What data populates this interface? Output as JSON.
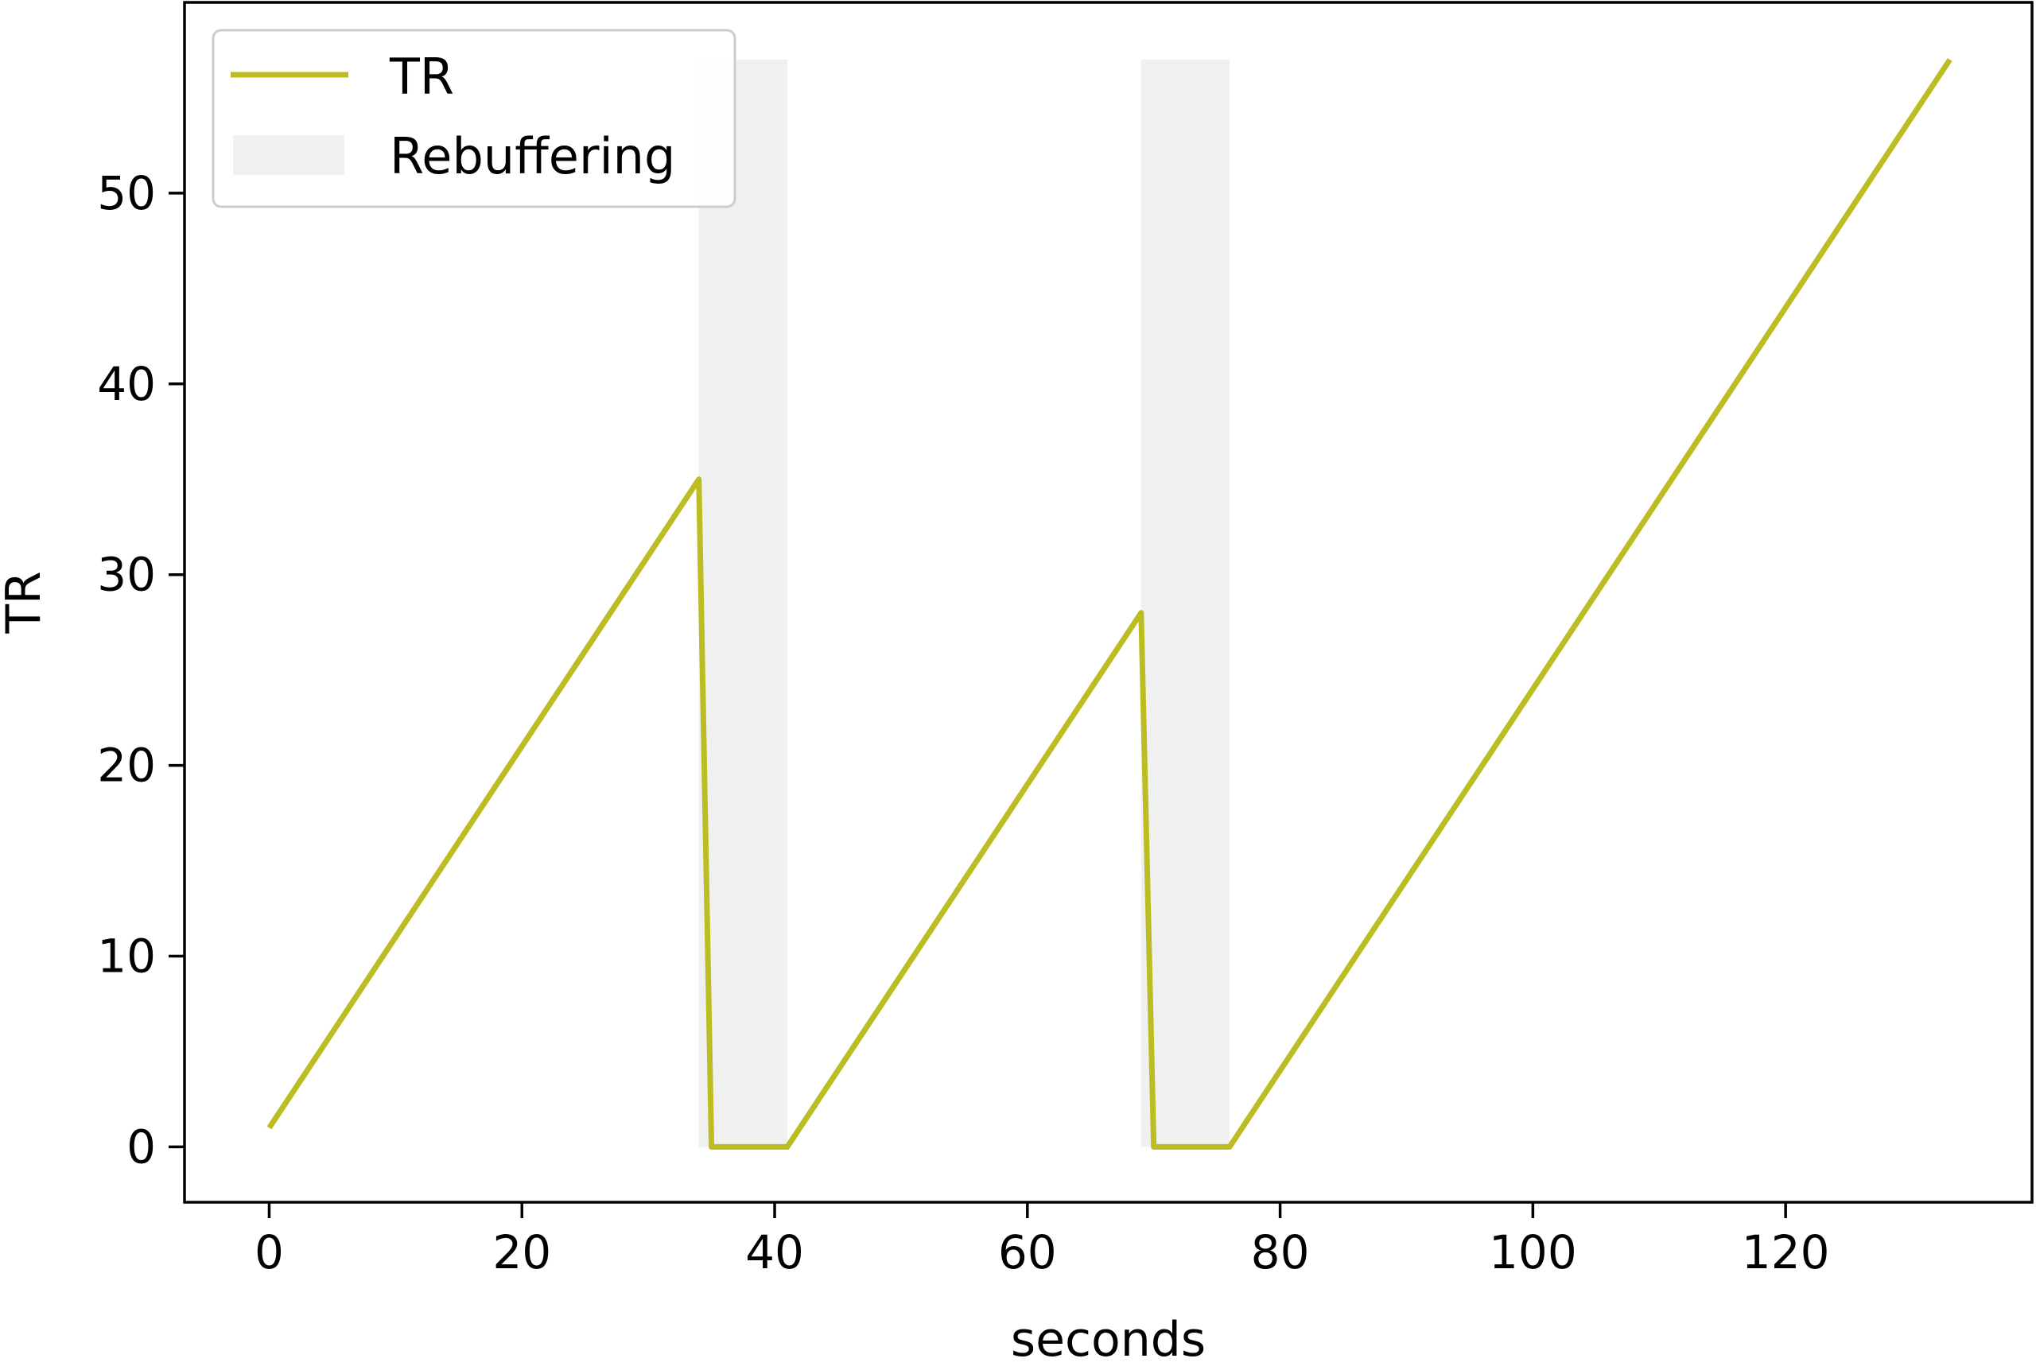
{
  "chart_data": {
    "type": "line",
    "xlabel": "seconds",
    "ylabel": "TR",
    "xlim": [
      -6.7,
      139.5
    ],
    "ylim": [
      -2.9,
      60
    ],
    "xticks": [
      0,
      20,
      40,
      60,
      80,
      100,
      120
    ],
    "yticks": [
      0,
      10,
      20,
      30,
      40,
      50
    ],
    "grid": false,
    "legend_position": "upper-left",
    "series": [
      {
        "name": "TR",
        "color": "#bcbd22",
        "x": [
          0,
          34,
          35,
          41,
          69,
          70,
          76,
          133
        ],
        "y": [
          1,
          35,
          0,
          0,
          28,
          0,
          0,
          57
        ]
      }
    ],
    "shaded_regions": {
      "name": "Rebuffering",
      "color": "#f0f0f0",
      "regions": [
        {
          "x0": 34,
          "x1": 41,
          "y0": 0,
          "y1": 57
        },
        {
          "x0": 69,
          "x1": 76,
          "y0": 0,
          "y1": 57
        }
      ]
    }
  }
}
